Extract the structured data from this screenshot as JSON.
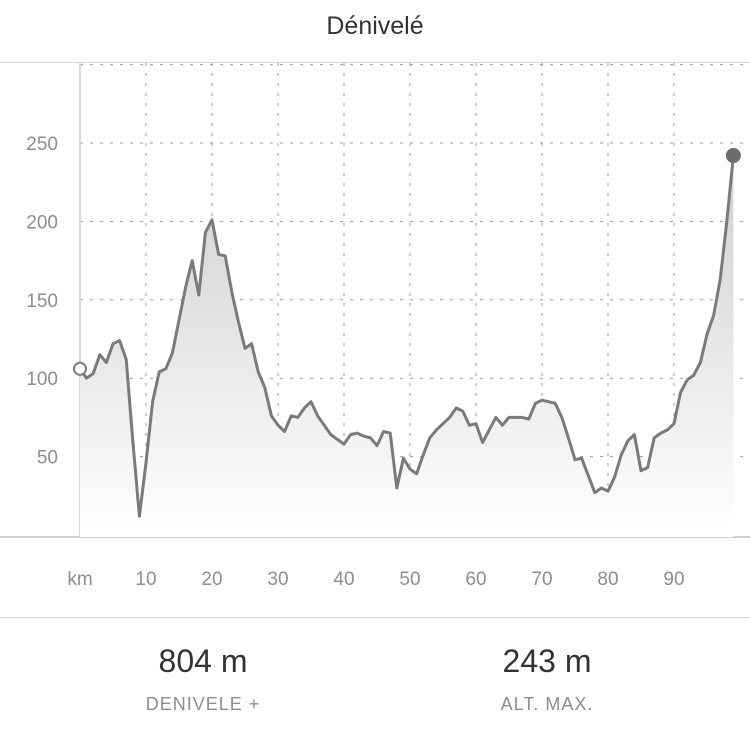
{
  "header": {
    "title": "Dénivelé"
  },
  "chart_data": {
    "type": "area",
    "xlabel": "km",
    "ylabel": "",
    "x_ticks": [
      10,
      20,
      30,
      40,
      50,
      60,
      70,
      80,
      90
    ],
    "y_ticks": [
      50,
      100,
      150,
      200,
      250
    ],
    "xlim": [
      0,
      99
    ],
    "ylim": [
      0,
      300
    ],
    "grid": true,
    "colors": {
      "line": "#7a7a7a",
      "fill_top": "#cfcfcf",
      "fill_bottom": "#ffffff",
      "marker_end": "#6d6d6d"
    },
    "x": [
      0,
      1,
      2,
      3,
      4,
      5,
      6,
      7,
      8,
      9,
      10,
      11,
      12,
      13,
      14,
      15,
      16,
      17,
      18,
      19,
      20,
      21,
      22,
      23,
      24,
      25,
      26,
      27,
      28,
      29,
      30,
      31,
      32,
      33,
      34,
      35,
      36,
      37,
      38,
      39,
      40,
      41,
      42,
      43,
      44,
      45,
      46,
      47,
      48,
      49,
      50,
      51,
      52,
      53,
      54,
      55,
      56,
      57,
      58,
      59,
      60,
      61,
      62,
      63,
      64,
      65,
      66,
      67,
      68,
      69,
      70,
      71,
      72,
      73,
      74,
      75,
      76,
      77,
      78,
      79,
      80,
      81,
      82,
      83,
      84,
      85,
      86,
      87,
      88,
      89,
      90,
      91,
      92,
      93,
      94,
      95,
      96,
      97,
      98,
      99
    ],
    "values": [
      106,
      100,
      103,
      115,
      110,
      122,
      124,
      112,
      60,
      12,
      46,
      85,
      104,
      106,
      116,
      137,
      158,
      175,
      153,
      193,
      201,
      179,
      178,
      155,
      136,
      119,
      122,
      104,
      94,
      76,
      70,
      66,
      76,
      75,
      81,
      85,
      76,
      70,
      64,
      61,
      58,
      64,
      65,
      63,
      62,
      57,
      66,
      65,
      30,
      49,
      42,
      39,
      51,
      62,
      67,
      71,
      75,
      81,
      79,
      70,
      71,
      59,
      67,
      75,
      70,
      75,
      75,
      75,
      74,
      84,
      86,
      85,
      84,
      75,
      62,
      48,
      49,
      38,
      27,
      30,
      28,
      37,
      51,
      60,
      64,
      41,
      43,
      62,
      65,
      67,
      71,
      91,
      99,
      102,
      110,
      128,
      140,
      163,
      200,
      242
    ],
    "start_marker": "open-circle",
    "end_marker": "filled-circle"
  },
  "stats": {
    "gain": {
      "value": "804 m",
      "label": "DENIVELE +"
    },
    "max_alt": {
      "value": "243 m",
      "label": "ALT. MAX."
    }
  }
}
